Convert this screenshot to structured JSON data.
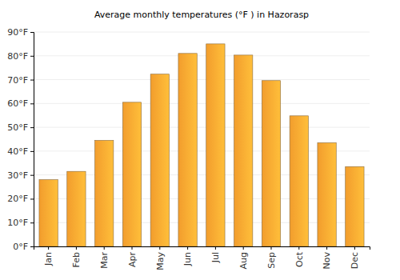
{
  "chart_data": {
    "type": "bar",
    "title": "Average monthly temperatures (°F ) in Hazorasp",
    "categories": [
      "Jan",
      "Feb",
      "Mar",
      "Apr",
      "May",
      "Jun",
      "Jul",
      "Aug",
      "Sep",
      "Oct",
      "Nov",
      "Dec"
    ],
    "values": [
      28,
      31.5,
      44.5,
      60.5,
      72.3,
      81,
      85,
      80.3,
      69.6,
      54.8,
      43.5,
      33.5
    ],
    "color": "#ffa630",
    "ylim": [
      0,
      90
    ],
    "yticks": [
      {
        "value": 0,
        "label": "0°F"
      },
      {
        "value": 10,
        "label": "10°F"
      },
      {
        "value": 20,
        "label": "20°F"
      },
      {
        "value": 30,
        "label": "30°F"
      },
      {
        "value": 40,
        "label": "40°F"
      },
      {
        "value": 50,
        "label": "50°F"
      },
      {
        "value": 60,
        "label": "60°F"
      },
      {
        "value": 70,
        "label": "70°F"
      },
      {
        "value": 80,
        "label": "80°F"
      },
      {
        "value": 90,
        "label": "90°F"
      }
    ],
    "grid": true
  }
}
